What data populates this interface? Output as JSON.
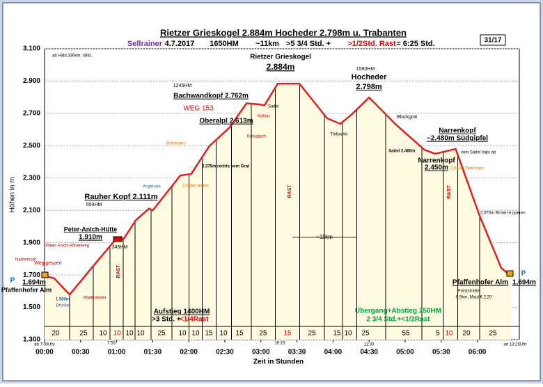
{
  "chart_data": {
    "type": "area",
    "title": "Rietzer Grieskogel 2.884m Hocheder 2.798m u. Trabanten",
    "subtitle_parts": [
      "Sellrainer",
      "4.7.2017",
      "1650HM",
      "~11km",
      ">5 3/4 Std. +",
      ">1/2Std. Rast",
      "= 6:25 Std."
    ],
    "badge": "31/17",
    "y_label": "Höhen in m",
    "x_label": "Zeit in Stunden",
    "xlim": [
      0,
      395
    ],
    "ylim": [
      1300,
      3100
    ],
    "xticks": [
      {
        "value": 0,
        "label": "00:00"
      },
      {
        "value": 30,
        "label": "00:30"
      },
      {
        "value": 60,
        "label": "01:00"
      },
      {
        "value": 90,
        "label": "01:30"
      },
      {
        "value": 120,
        "label": "02:00"
      },
      {
        "value": 150,
        "label": "02:30"
      },
      {
        "value": 180,
        "label": "03:00"
      },
      {
        "value": 210,
        "label": "03:30"
      },
      {
        "value": 240,
        "label": "04:00"
      },
      {
        "value": 270,
        "label": "04:30"
      },
      {
        "value": 300,
        "label": "05:00"
      },
      {
        "value": 330,
        "label": "05:30"
      },
      {
        "value": 360,
        "label": "06:00"
      }
    ],
    "yticks": [
      {
        "value": 1300,
        "label": "1.300"
      },
      {
        "value": 1500,
        "label": "1.500"
      },
      {
        "value": 1700,
        "label": "1.700"
      },
      {
        "value": 1900,
        "label": "1.900"
      },
      {
        "value": 2100,
        "label": "2.100"
      },
      {
        "value": 2300,
        "label": "2.300"
      },
      {
        "value": 2500,
        "label": "2.500"
      },
      {
        "value": 2700,
        "label": "2.700"
      },
      {
        "value": 2900,
        "label": "2.900"
      },
      {
        "value": 3100,
        "label": "3.100"
      }
    ],
    "grid": true,
    "line_color": "#e02020",
    "fill_color": "#fffbe0",
    "x": [
      0,
      8,
      19,
      21,
      44,
      58,
      66,
      76,
      87,
      90,
      113,
      122,
      137,
      154,
      168,
      178,
      183,
      194,
      212,
      235,
      246,
      255,
      270,
      293,
      316,
      325,
      342,
      362,
      380,
      388
    ],
    "values": [
      1694,
      1680,
      1593,
      1580,
      1787,
      1910,
      1925,
      2040,
      2111,
      2100,
      2316,
      2325,
      2497,
      2613,
      2762,
      2756,
      2750,
      2884,
      2884,
      2670,
      2635,
      2690,
      2798,
      2626,
      2475,
      2450,
      2480,
      2066,
      1743,
      1694
    ],
    "segment_labels": [
      "20",
      "25",
      "10",
      "10",
      "10",
      "10",
      "25",
      "10",
      "10",
      "15",
      "10",
      "15",
      "25",
      "15",
      "25",
      "15",
      "10",
      "25",
      "55",
      "5",
      "10",
      "20",
      "25"
    ],
    "annotations": [
      "ab Häld 336km; 48td.",
      "Rietzer Grieskogel",
      "2.884m",
      "1590HM",
      "Hocheder",
      "2.798m",
      "1245HM",
      "Bachwandkopf 2.762m",
      "WEG 153",
      "Oberalpl 2.613m",
      "Sattel",
      "Kühtai",
      "Kreuzjoch",
      "Blockgrat",
      "Narrenkopf",
      "~2.480m Südgipfel",
      "vom Sattel links ab",
      "Sattel 2.460m",
      "Narrenkopf",
      "2.450m",
      "Rauher Kopf 2.111m",
      "550HM",
      "Angersee",
      "Peter-Anich-Hütte",
      "1.910m",
      "345HM",
      "Peter-Anich-Höhenweg",
      "Narrenkopf",
      "Weg gespert",
      "P",
      "1.694m",
      "Pfaffenhofer Alm",
      "1.580m",
      "Brücke",
      "Pfaffenhofer",
      "P",
      "Pfaffenhofer Alm",
      "1.694m",
      "Forststraße",
      "6,9km, Maut € 2,20",
      "Aufstieg 1400HM",
      ">3 Std. +",
      "<1/4Rast",
      "Übergang+Abstieg 250HM",
      "2 3/4 Std.+<1/2Rast",
      "~11km",
      "RAST",
      "RAST",
      "RAST",
      "2.070m Rinne re.queren",
      "2.040m Tafel links",
      "Tiefpunkt",
      "ab 7:00Uhr",
      "7:55",
      "10:15",
      "11:30",
      "an 13:25Uhr",
      "2.375m rechts vom Grat",
      "2.266m rechts",
      "Steinmann"
    ]
  }
}
